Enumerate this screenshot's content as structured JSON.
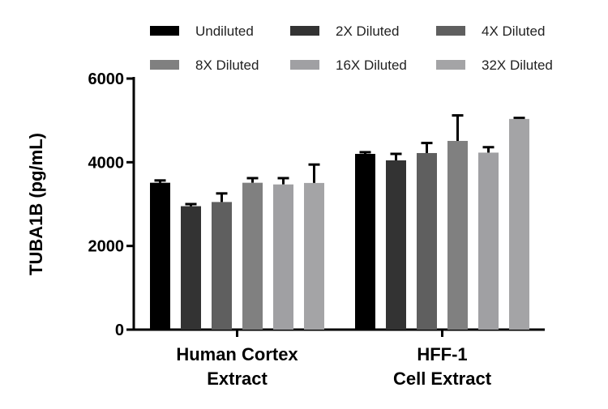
{
  "chart_data": {
    "type": "bar",
    "title": "",
    "xlabel": "",
    "ylabel": "TUBA1B (pg/mL)",
    "ylim": [
      0,
      6000
    ],
    "yticks": [
      0,
      2000,
      4000,
      6000
    ],
    "grid": false,
    "legend_placement": "top",
    "categories": [
      "Human Cortex\nExtract",
      "HFF-1\nCell Extract"
    ],
    "series": [
      {
        "name": "Undiluted",
        "color": "#000000",
        "values": [
          3510,
          4200
        ],
        "errors": [
          55,
          40
        ]
      },
      {
        "name": "2X Diluted",
        "color": "#333333",
        "values": [
          2950,
          4045
        ],
        "errors": [
          50,
          155
        ]
      },
      {
        "name": "4X Diluted",
        "color": "#5f5f5f",
        "values": [
          3050,
          4220
        ],
        "errors": [
          205,
          240
        ]
      },
      {
        "name": "8X Diluted",
        "color": "#808080",
        "values": [
          3510,
          4510
        ],
        "errors": [
          110,
          610
        ]
      },
      {
        "name": "16X Diluted",
        "color": "#a0a0a3",
        "values": [
          3470,
          4230
        ],
        "errors": [
          150,
          130
        ]
      },
      {
        "name": "32X Diluted",
        "color": "#a4a4a6",
        "values": [
          3505,
          5035
        ],
        "errors": [
          440,
          25
        ]
      }
    ]
  }
}
